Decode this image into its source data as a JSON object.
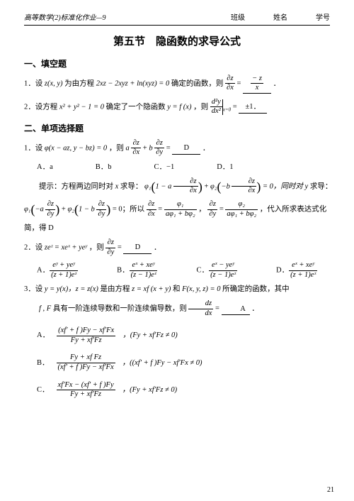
{
  "header": {
    "course": "高等数学(2)标准化作业—9",
    "fields": {
      "class": "班级",
      "name": "姓名",
      "id": "学号"
    }
  },
  "title": "第五节　隐函数的求导公式",
  "sec1": {
    "heading": "一、填空题",
    "q1": {
      "prefix": "1．设",
      "var": "z(x, y)",
      "mid1": "为由方程",
      "eq": "2xz − 2xyz + ln(xyz) = 0",
      "mid2": "确定的函数，则",
      "lhs_num": "∂z",
      "lhs_den": "∂x",
      "equals": " = ",
      "ans_num": "− z",
      "ans_den": "x",
      "end": "．"
    },
    "q2": {
      "prefix": "2．设方程",
      "eq1": "x² + y² − 1 = 0",
      "mid1": "确定了一个隐函数",
      "eq2": "y = f (x)",
      "mid2": "，则",
      "deriv_num": "d²y",
      "deriv_den": "dx²",
      "eval": "x=0",
      "equals": " = ",
      "ans": "±1．"
    }
  },
  "sec2": {
    "heading": "二、单项选择题",
    "q1": {
      "prefix": "1．设",
      "eq": "φ(x − az, y − bz) = 0",
      "mid": "，则",
      "expr_a": "a",
      "d1n": "∂z",
      "d1d": "∂x",
      "plus": "+",
      "expr_b": "b",
      "d2n": "∂z",
      "d2d": "∂y",
      "equals": " = ",
      "ans": " D ",
      "end": "．",
      "choices": {
        "A": "A．a",
        "B": "B．b",
        "C": "C．−1",
        "D": "D．1"
      },
      "hint1_pre": "提示：方程两边同时对",
      "hint1_x": "x",
      "hint1_mid": "求导：",
      "phi1": "φ₁",
      "one_minus_a": "1 − a",
      "dzx_n": "∂z",
      "dzx_d": "∂x",
      "plus2": " + ",
      "phi2": "φ₂",
      "minus_b": "−b",
      "hint1_tail": " = 0，同时对",
      "hint1_y": "y",
      "hint1_tail2": "求导：",
      "line2_phi1": "φ₁",
      "neg_a": "−a",
      "dzy_n": "∂z",
      "dzy_d": "∂y",
      "line2_phi2": "φ₂",
      "one_minus_b": "1 − b",
      "line2_tail": " = 0；所以",
      "res1_lhs_n": "∂z",
      "res1_lhs_d": "∂x",
      "res1_eq": " = ",
      "res1_rhs_n": "φ₁",
      "res1_rhs_d": "aφ₁ + bφ₂",
      "comma": "，",
      "res2_lhs_n": "∂z",
      "res2_lhs_d": "∂y",
      "res2_eq": " = ",
      "res2_rhs_n": "φ₂",
      "res2_rhs_d": "aφ₁ + bφ₂",
      "line2_tail2": "，代入所求表达式化",
      "line3": "简，得 D"
    },
    "q2": {
      "prefix": "2．设",
      "eq": "zeᶻ = xeˣ + yeʸ",
      "mid": "，则",
      "lhs_n": "∂z",
      "lhs_d": "∂y",
      "equals": " = ",
      "ans": " D ",
      "end": "．",
      "A_label": "A．",
      "A_n": "eʸ + yeʸ",
      "A_d": "(z + 1)eᶻ",
      "B_label": "B．",
      "B_n": "eˣ + xeʸ",
      "B_d": "(z − 1)eᶻ",
      "C_label": "C．",
      "C_n": "eˣ − yeʸ",
      "C_d": "(z − 1)eᶻ",
      "D_label": "D．",
      "D_n": "eˣ + xeʸ",
      "D_d": "(z + 1)eᶻ"
    },
    "q3": {
      "prefix": "3．设",
      "eq1": "y = y(x)，z = z(x)",
      "mid1": "是由方程",
      "eq2": "z = xf (x + y)",
      "and": "和",
      "eq3": "F(x, y, z) = 0",
      "mid2": "所确定的函数，其中",
      "line2_pre": "f , F",
      "line2_mid": "具有一阶连续导数和一阶连续偏导数，则",
      "lhs_n": "dz",
      "lhs_d": "dx",
      "equals": " = ",
      "ans": " A ",
      "end": "．",
      "A_label": "A．",
      "A_n": "(xf′ + f )Fy − xf′Fx",
      "A_d": "Fy + xf′Fz",
      "A_cond": "，(Fy + xf′Fz ≠ 0)",
      "B_label": "B．",
      "B_n": "Fy + xf Fz",
      "B_d": "(xf′ + f )Fy − xf′Fx",
      "B_cond": "，((xf′ + f )Fy − xf′Fx ≠ 0)",
      "C_label": "C．",
      "C_n": "xf′Fx − (xf′ + f )Fy",
      "C_d": "Fy + xf′Fz",
      "C_cond": "，(Fy + xf′Fz ≠ 0)"
    }
  },
  "pagenum": "21"
}
